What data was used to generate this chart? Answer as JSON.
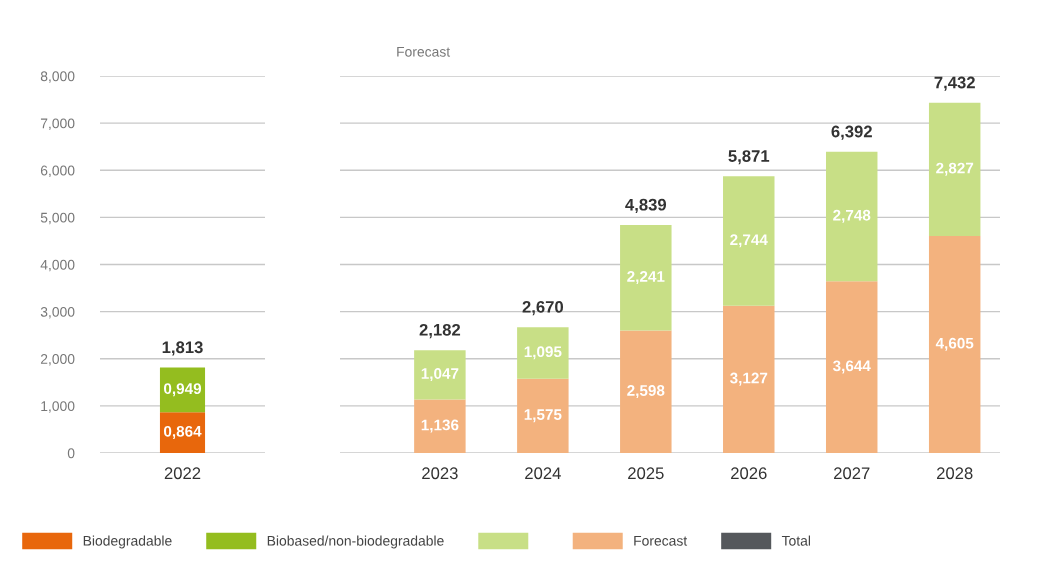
{
  "chart_data": [
    {
      "type": "bar",
      "stacked": true,
      "categories": [
        "2022"
      ],
      "ylim": [
        0,
        8
      ],
      "yticks": [
        0,
        {
          "value": 1,
          "label": "1,000"
        },
        {
          "value": 2,
          "label": "2,000"
        },
        {
          "value": 3,
          "label": "3,000"
        },
        {
          "value": 4,
          "label": "4,000"
        },
        {
          "value": 5,
          "label": "5,000"
        },
        {
          "value": 6,
          "label": "6,000"
        },
        {
          "value": 7,
          "label": "7,000"
        },
        {
          "value": 8,
          "label": "8,000"
        }
      ],
      "grid": "y",
      "legend": "bottom",
      "series": [
        {
          "name": "Biodegradable",
          "color": "#e8670c",
          "values": [
            0.864
          ],
          "value_labels": [
            "0,864"
          ]
        },
        {
          "name": "Biobased/non-biodegradable",
          "color": "#94bd1f",
          "values": [
            0.949
          ],
          "value_labels": [
            "0,949"
          ]
        }
      ],
      "totals": [
        "1,813"
      ]
    },
    {
      "type": "bar",
      "stacked": true,
      "title": "Forecast",
      "categories": [
        "2023",
        "2024",
        "2025",
        "2026",
        "2027",
        "2028"
      ],
      "ylim": [
        0,
        8
      ],
      "yticks": [
        0,
        1,
        2,
        3,
        4,
        5,
        6,
        7,
        8
      ],
      "tick_labels": "x",
      "grid": "y",
      "legend": "bottom",
      "series": [
        {
          "name": "Forecast",
          "color": "#f3b27e",
          "values": [
            1.136,
            1.575,
            2.598,
            3.127,
            3.644,
            4.605
          ],
          "value_labels": [
            "1,136",
            "1,575",
            "2,598",
            "3,127",
            "3,644",
            "4,605"
          ]
        },
        {
          "color": "#c8df86",
          "values": [
            1.047,
            1.095,
            2.241,
            2.744,
            2.748,
            2.827
          ],
          "value_labels": [
            "1,047",
            "1,095",
            "2,241",
            "2,744",
            "2,748",
            "2,827"
          ]
        }
      ],
      "totals": [
        "2,182",
        "2,670",
        "4,839",
        "5,871",
        "6,392",
        "7,432"
      ],
      "annotations": [
        "Total"
      ]
    }
  ]
}
